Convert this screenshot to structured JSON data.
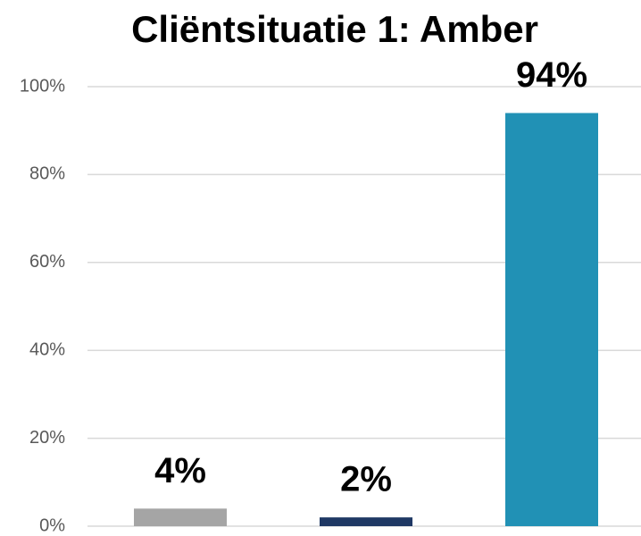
{
  "chart_data": {
    "type": "bar",
    "title": "Cliëntsituatie 1: Amber",
    "categories": [
      null,
      null,
      null
    ],
    "values": [
      4,
      2,
      94
    ],
    "value_labels": [
      "4%",
      "2%",
      "94%"
    ],
    "colors": [
      "#a5a5a5",
      "#1f3864",
      "#2191b5"
    ],
    "ylim": [
      0,
      100
    ],
    "yticks": [
      {
        "value": 0,
        "label": "0%"
      },
      {
        "value": 20,
        "label": "20%"
      },
      {
        "value": 40,
        "label": "40%"
      },
      {
        "value": 60,
        "label": "60%"
      },
      {
        "value": 80,
        "label": "80%"
      },
      {
        "value": 100,
        "label": "100%"
      }
    ],
    "grid": true
  }
}
